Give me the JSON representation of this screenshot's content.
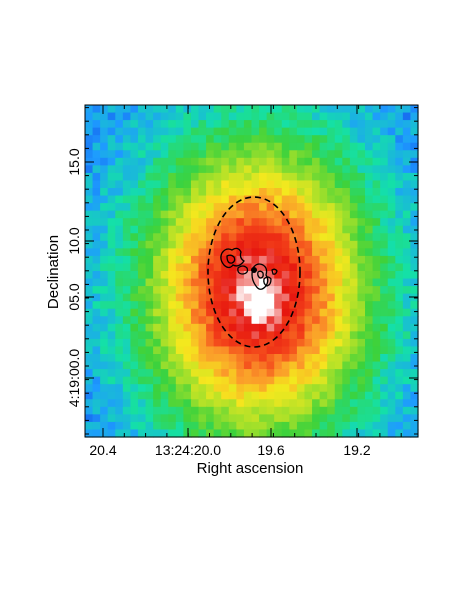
{
  "chart_data": {
    "type": "heatmap",
    "title": "",
    "xlabel": "Right ascension",
    "ylabel": "Declination",
    "x_ticks": [
      "20.4",
      "13:24:20.0",
      "19.6",
      "19.2"
    ],
    "y_ticks": [
      "15.0",
      "10.0",
      "05.0",
      "4:19:00.0"
    ],
    "colormap": [
      "#0b1bd6",
      "#1e9bff",
      "#14e0a8",
      "#3cd23c",
      "#a5e02a",
      "#f5e81e",
      "#fb9b2a",
      "#f3421a",
      "#e6160f",
      "#ffffff"
    ],
    "overlays": {
      "ellipse_style": "dashed",
      "contour_color": "#000000"
    }
  }
}
